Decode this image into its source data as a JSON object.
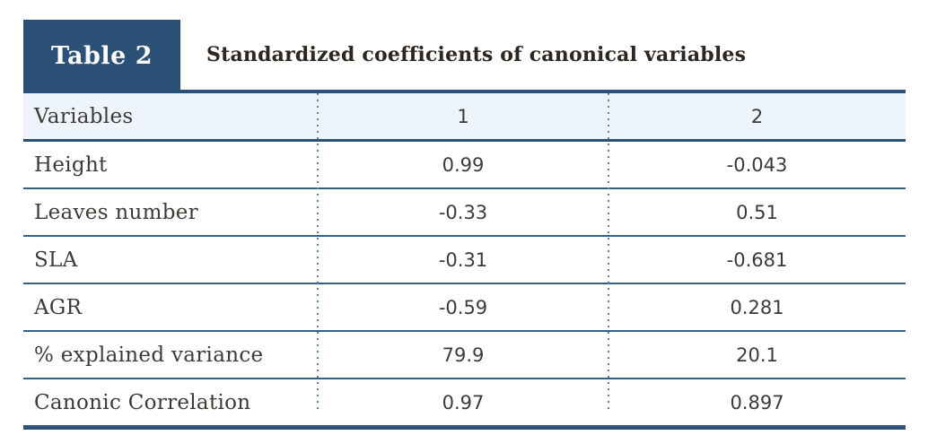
{
  "badge": {
    "label": "Table 2"
  },
  "header_title": "Standardized coefficients of canonical variables",
  "table": {
    "columns": [
      {
        "label": "Variables"
      },
      {
        "label": "1"
      },
      {
        "label": "2"
      }
    ],
    "rows": [
      {
        "label": "Height",
        "v1": "0.99",
        "v2": "-0.043"
      },
      {
        "label": "Leaves number",
        "v1": "-0.33",
        "v2": "0.51"
      },
      {
        "label": "SLA",
        "v1": "-0.31",
        "v2": "-0.681"
      },
      {
        "label": "AGR",
        "v1": "-0.59",
        "v2": "0.281"
      },
      {
        "label": "% explained variance",
        "v1": "79.9",
        "v2": "20.1"
      },
      {
        "label": "Canonic Correlation",
        "v1": "0.97",
        "v2": "0.897"
      }
    ]
  },
  "colors": {
    "accent_dark_blue": "#2b5176",
    "row_separator_blue": "#356089",
    "dotted_separator_blue": "#5681aa",
    "header_row_bg": "#edf4fb",
    "body_text": "#3f3a36",
    "title_text": "#2d2621",
    "badge_text": "#ffffff"
  },
  "chart_data": {
    "type": "table",
    "title": "Standardized coefficients of canonical variables",
    "columns": [
      "Variables",
      "1",
      "2"
    ],
    "rows": [
      [
        "Height",
        0.99,
        -0.043
      ],
      [
        "Leaves number",
        -0.33,
        0.51
      ],
      [
        "SLA",
        -0.31,
        -0.681
      ],
      [
        "AGR",
        -0.59,
        0.281
      ],
      [
        "% explained variance",
        79.9,
        20.1
      ],
      [
        "Canonic Correlation",
        0.97,
        0.897
      ]
    ]
  }
}
